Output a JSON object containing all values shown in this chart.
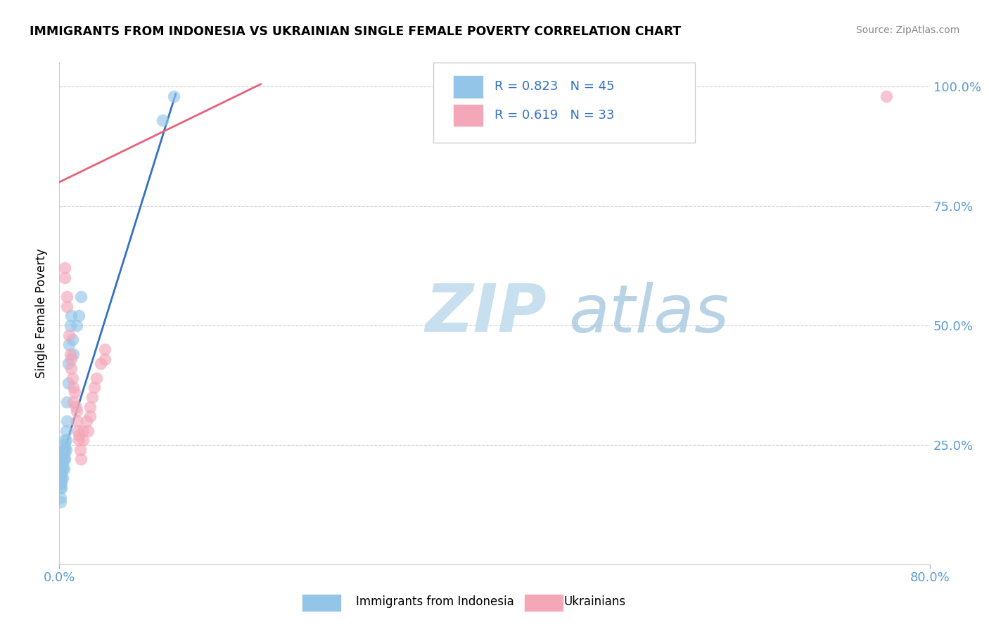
{
  "title": "IMMIGRANTS FROM INDONESIA VS UKRAINIAN SINGLE FEMALE POVERTY CORRELATION CHART",
  "source": "Source: ZipAtlas.com",
  "ylabel": "Single Female Poverty",
  "legend1_label": "Immigrants from Indonesia",
  "legend2_label": "Ukrainians",
  "blue_color": "#92C5E8",
  "pink_color": "#F4A7B9",
  "blue_line_color": "#3371C3",
  "pink_line_color": "#E8607A",
  "xmin": 0.0,
  "xmax": 0.8,
  "ymin": 0.0,
  "ymax": 1.05,
  "blue_x": [
    0.001,
    0.001,
    0.001,
    0.001,
    0.001,
    0.001,
    0.001,
    0.001,
    0.002,
    0.002,
    0.002,
    0.002,
    0.002,
    0.002,
    0.002,
    0.003,
    0.003,
    0.003,
    0.003,
    0.003,
    0.004,
    0.004,
    0.004,
    0.004,
    0.005,
    0.005,
    0.005,
    0.005,
    0.006,
    0.006,
    0.006,
    0.007,
    0.007,
    0.008,
    0.008,
    0.009,
    0.01,
    0.011,
    0.012,
    0.013,
    0.016,
    0.018,
    0.02,
    0.095,
    0.105
  ],
  "blue_y": [
    0.21,
    0.2,
    0.19,
    0.18,
    0.17,
    0.16,
    0.14,
    0.13,
    0.22,
    0.21,
    0.2,
    0.19,
    0.18,
    0.17,
    0.16,
    0.23,
    0.22,
    0.21,
    0.2,
    0.18,
    0.24,
    0.23,
    0.22,
    0.2,
    0.26,
    0.25,
    0.24,
    0.22,
    0.28,
    0.26,
    0.24,
    0.34,
    0.3,
    0.42,
    0.38,
    0.46,
    0.5,
    0.52,
    0.47,
    0.44,
    0.5,
    0.52,
    0.56,
    0.93,
    0.98
  ],
  "pink_x": [
    0.005,
    0.005,
    0.007,
    0.007,
    0.009,
    0.01,
    0.011,
    0.011,
    0.012,
    0.013,
    0.013,
    0.014,
    0.015,
    0.016,
    0.016,
    0.017,
    0.018,
    0.018,
    0.019,
    0.02,
    0.022,
    0.022,
    0.025,
    0.026,
    0.028,
    0.028,
    0.03,
    0.032,
    0.034,
    0.038,
    0.042,
    0.042,
    0.76
  ],
  "pink_y": [
    0.62,
    0.6,
    0.56,
    0.54,
    0.48,
    0.44,
    0.43,
    0.41,
    0.39,
    0.37,
    0.34,
    0.36,
    0.33,
    0.32,
    0.3,
    0.28,
    0.27,
    0.26,
    0.24,
    0.22,
    0.28,
    0.26,
    0.3,
    0.28,
    0.33,
    0.31,
    0.35,
    0.37,
    0.39,
    0.42,
    0.45,
    0.43,
    0.98
  ],
  "blue_line": [
    [
      0.0,
      0.107
    ],
    [
      0.205,
      0.985
    ]
  ],
  "pink_line": [
    [
      0.0,
      0.185
    ],
    [
      0.8,
      1.005
    ]
  ]
}
